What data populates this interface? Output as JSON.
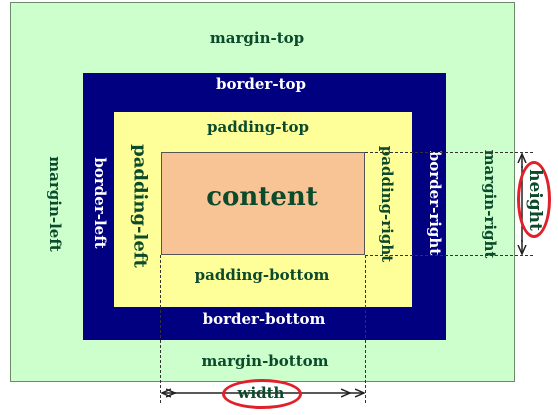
{
  "labels": {
    "margin_top": "margin-top",
    "margin_bottom": "margin-bottom",
    "margin_left": "margin-left",
    "margin_right": "margin-right",
    "border_top": "border-top",
    "border_bottom": "border-bottom",
    "border_left": "border-left",
    "border_right": "border-right",
    "padding_top": "padding-top",
    "padding_bottom": "padding-bottom",
    "padding_left": "padding-left",
    "padding_right": "padding-right",
    "content": "content",
    "width": "width",
    "height": "height"
  },
  "colors": {
    "margin": "#ccffcc",
    "border": "#000080",
    "padding": "#ffff99",
    "content": "#f8c495",
    "highlight": "#e0202a",
    "text_dark": "#0b4a2b",
    "text_light": "#ffffff"
  }
}
